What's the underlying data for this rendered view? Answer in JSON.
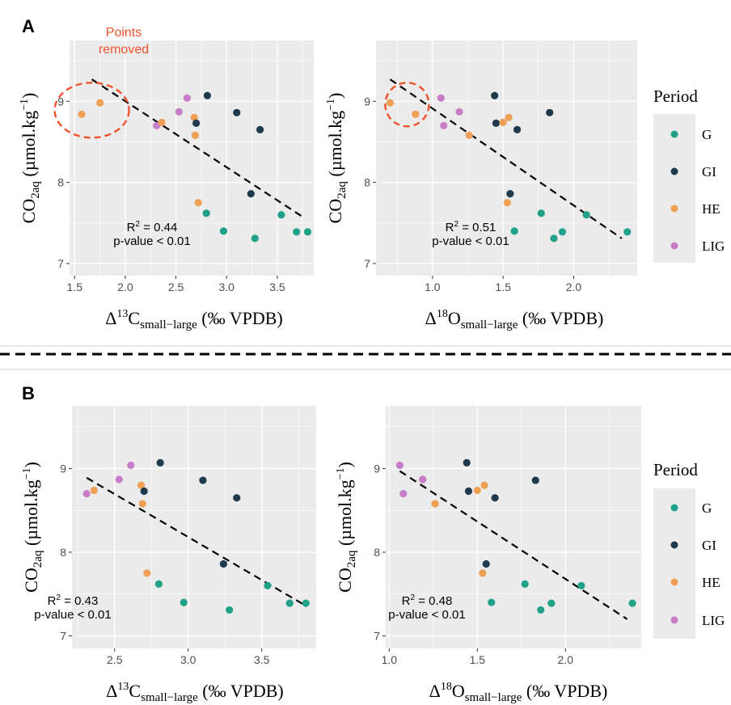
{
  "colors": {
    "G": "#21a08a",
    "GI": "#1e3a4c",
    "HE": "#f0a055",
    "LIG": "#c77cc8",
    "annotation": "#f0522e",
    "panel_bg": "#ebebeb",
    "grid": "#ffffff"
  },
  "legend": {
    "title": "Period",
    "entries": [
      "G",
      "GI",
      "HE",
      "LIG"
    ]
  },
  "labels": {
    "panel_a": "A",
    "panel_b": "B",
    "annotation_line1": "Points",
    "annotation_line2": "removed",
    "y_main": "CO",
    "y_sub": "2aq",
    "y_unit": " (µmol.kg",
    "y_sup": "−1",
    "y_close": ")",
    "x_delta": "Δ",
    "x13_sup": "13",
    "x13_base": "C",
    "x18_sup": "18",
    "x18_base": "O",
    "x_sub": "small−large",
    "x_unit": " (‰ VPDB)",
    "r2": "R",
    "r2_sup": "2",
    "pvalue": "p-value < 0.01"
  },
  "chart_data": [
    {
      "type": "scatter",
      "panel": "A",
      "xlabel": "Δ13Csmall−large (‰ VPDB)",
      "ylabel": "CO2aq (µmol.kg−1)",
      "xlim": [
        1.45,
        3.86
      ],
      "ylim": [
        6.85,
        9.75
      ],
      "xticks": [
        "1.5",
        "2.0",
        "2.5",
        "3.0",
        "3.5"
      ],
      "yticks": [
        "7",
        "8",
        "9"
      ],
      "r2_value": " = 0.44",
      "fit_line": [
        [
          1.67,
          9.27
        ],
        [
          3.77,
          7.56
        ]
      ],
      "points": [
        {
          "period": "HE",
          "x": 1.57,
          "y": 8.84
        },
        {
          "period": "HE",
          "x": 1.75,
          "y": 8.98
        },
        {
          "period": "LIG",
          "x": 2.31,
          "y": 8.7
        },
        {
          "period": "HE",
          "x": 2.36,
          "y": 8.74
        },
        {
          "period": "LIG",
          "x": 2.53,
          "y": 8.87
        },
        {
          "period": "LIG",
          "x": 2.61,
          "y": 9.04
        },
        {
          "period": "HE",
          "x": 2.68,
          "y": 8.8
        },
        {
          "period": "HE",
          "x": 2.69,
          "y": 8.58
        },
        {
          "period": "GI",
          "x": 2.7,
          "y": 8.73
        },
        {
          "period": "HE",
          "x": 2.72,
          "y": 7.75
        },
        {
          "period": "G",
          "x": 2.8,
          "y": 7.62
        },
        {
          "period": "GI",
          "x": 2.81,
          "y": 9.07
        },
        {
          "period": "G",
          "x": 2.97,
          "y": 7.4
        },
        {
          "period": "GI",
          "x": 3.1,
          "y": 8.86
        },
        {
          "period": "GI",
          "x": 3.24,
          "y": 7.86
        },
        {
          "period": "G",
          "x": 3.28,
          "y": 7.31
        },
        {
          "period": "GI",
          "x": 3.33,
          "y": 8.65
        },
        {
          "period": "G",
          "x": 3.54,
          "y": 7.6
        },
        {
          "period": "G",
          "x": 3.69,
          "y": 7.39
        },
        {
          "period": "G",
          "x": 3.8,
          "y": 7.39
        }
      ],
      "annotation": {
        "x": 1.67,
        "y": 8.89
      }
    },
    {
      "type": "scatter",
      "panel": "A",
      "xlabel": "Δ18Osmall−large (‰ VPDB)",
      "ylabel": "CO2aq (µmol.kg−1)",
      "xlim": [
        0.6,
        2.45
      ],
      "ylim": [
        6.85,
        9.75
      ],
      "xticks": [
        "1.0",
        "1.5",
        "2.0"
      ],
      "yticks": [
        "7",
        "8",
        "9"
      ],
      "r2_value": " = 0.51",
      "fit_line": [
        [
          0.7,
          9.27
        ],
        [
          2.34,
          7.31
        ]
      ],
      "points": [
        {
          "period": "HE",
          "x": 0.7,
          "y": 8.98
        },
        {
          "period": "HE",
          "x": 0.88,
          "y": 8.84
        },
        {
          "period": "LIG",
          "x": 1.06,
          "y": 9.04
        },
        {
          "period": "LIG",
          "x": 1.08,
          "y": 8.7
        },
        {
          "period": "LIG",
          "x": 1.19,
          "y": 8.87
        },
        {
          "period": "HE",
          "x": 1.26,
          "y": 8.58
        },
        {
          "period": "GI",
          "x": 1.44,
          "y": 9.07
        },
        {
          "period": "GI",
          "x": 1.45,
          "y": 8.73
        },
        {
          "period": "HE",
          "x": 1.5,
          "y": 8.74
        },
        {
          "period": "HE",
          "x": 1.53,
          "y": 7.75
        },
        {
          "period": "HE",
          "x": 1.54,
          "y": 8.8
        },
        {
          "period": "GI",
          "x": 1.55,
          "y": 7.86
        },
        {
          "period": "G",
          "x": 1.58,
          "y": 7.4
        },
        {
          "period": "GI",
          "x": 1.6,
          "y": 8.65
        },
        {
          "period": "G",
          "x": 1.77,
          "y": 7.62
        },
        {
          "period": "GI",
          "x": 1.83,
          "y": 8.86
        },
        {
          "period": "G",
          "x": 1.86,
          "y": 7.31
        },
        {
          "period": "G",
          "x": 1.92,
          "y": 7.39
        },
        {
          "period": "G",
          "x": 2.09,
          "y": 7.6
        },
        {
          "period": "G",
          "x": 2.38,
          "y": 7.39
        }
      ],
      "annotation": {
        "x": 0.82,
        "y": 8.96
      }
    },
    {
      "type": "scatter",
      "panel": "B",
      "xlabel": "Δ13Csmall−large (‰ VPDB)",
      "ylabel": "CO2aq (µmol.kg−1)",
      "xlim": [
        2.21,
        3.87
      ],
      "ylim": [
        6.85,
        9.75
      ],
      "xticks": [
        "2.5",
        "3.0",
        "3.5"
      ],
      "yticks": [
        "7",
        "8",
        "9"
      ],
      "r2_value": " = 0.43",
      "fit_line": [
        [
          2.31,
          8.89
        ],
        [
          3.8,
          7.36
        ]
      ],
      "points": [
        {
          "period": "LIG",
          "x": 2.31,
          "y": 8.7
        },
        {
          "period": "HE",
          "x": 2.36,
          "y": 8.74
        },
        {
          "period": "LIG",
          "x": 2.53,
          "y": 8.87
        },
        {
          "period": "LIG",
          "x": 2.61,
          "y": 9.04
        },
        {
          "period": "HE",
          "x": 2.68,
          "y": 8.8
        },
        {
          "period": "HE",
          "x": 2.69,
          "y": 8.58
        },
        {
          "period": "GI",
          "x": 2.7,
          "y": 8.73
        },
        {
          "period": "HE",
          "x": 2.72,
          "y": 7.75
        },
        {
          "period": "G",
          "x": 2.8,
          "y": 7.62
        },
        {
          "period": "GI",
          "x": 2.81,
          "y": 9.07
        },
        {
          "period": "G",
          "x": 2.97,
          "y": 7.4
        },
        {
          "period": "GI",
          "x": 3.1,
          "y": 8.86
        },
        {
          "period": "GI",
          "x": 3.24,
          "y": 7.86
        },
        {
          "period": "G",
          "x": 3.28,
          "y": 7.31
        },
        {
          "period": "GI",
          "x": 3.33,
          "y": 8.65
        },
        {
          "period": "G",
          "x": 3.54,
          "y": 7.6
        },
        {
          "period": "G",
          "x": 3.69,
          "y": 7.39
        },
        {
          "period": "G",
          "x": 3.8,
          "y": 7.39
        }
      ]
    },
    {
      "type": "scatter",
      "panel": "B",
      "xlabel": "Δ18Osmall−large (‰ VPDB)",
      "ylabel": "CO2aq (µmol.kg−1)",
      "xlim": [
        0.98,
        2.43
      ],
      "ylim": [
        6.85,
        9.75
      ],
      "xticks": [
        "1.0",
        "1.5",
        "2.0"
      ],
      "yticks": [
        "7",
        "8",
        "9"
      ],
      "r2_value": " = 0.48",
      "fit_line": [
        [
          1.06,
          8.97
        ],
        [
          2.35,
          7.2
        ]
      ],
      "points": [
        {
          "period": "LIG",
          "x": 1.06,
          "y": 9.04
        },
        {
          "period": "LIG",
          "x": 1.08,
          "y": 8.7
        },
        {
          "period": "LIG",
          "x": 1.19,
          "y": 8.87
        },
        {
          "period": "HE",
          "x": 1.26,
          "y": 8.58
        },
        {
          "period": "GI",
          "x": 1.44,
          "y": 9.07
        },
        {
          "period": "GI",
          "x": 1.45,
          "y": 8.73
        },
        {
          "period": "HE",
          "x": 1.5,
          "y": 8.74
        },
        {
          "period": "HE",
          "x": 1.53,
          "y": 7.75
        },
        {
          "period": "HE",
          "x": 1.54,
          "y": 8.8
        },
        {
          "period": "GI",
          "x": 1.55,
          "y": 7.86
        },
        {
          "period": "G",
          "x": 1.58,
          "y": 7.4
        },
        {
          "period": "GI",
          "x": 1.6,
          "y": 8.65
        },
        {
          "period": "G",
          "x": 1.77,
          "y": 7.62
        },
        {
          "period": "GI",
          "x": 1.83,
          "y": 8.86
        },
        {
          "period": "G",
          "x": 1.86,
          "y": 7.31
        },
        {
          "period": "G",
          "x": 1.92,
          "y": 7.39
        },
        {
          "period": "G",
          "x": 2.09,
          "y": 7.6
        },
        {
          "period": "G",
          "x": 2.38,
          "y": 7.39
        }
      ]
    }
  ]
}
